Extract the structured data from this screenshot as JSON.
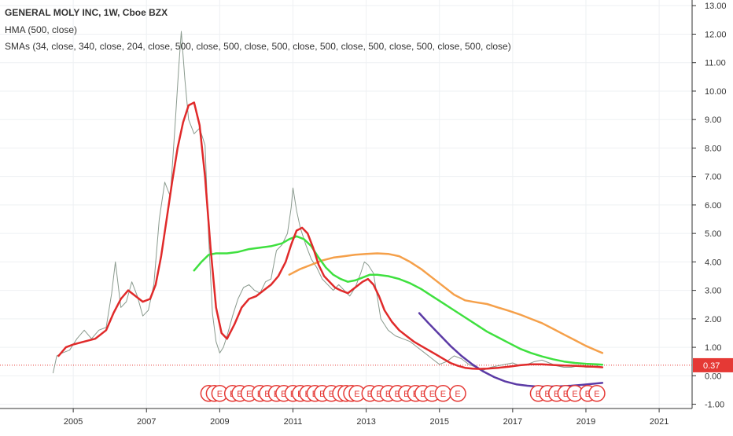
{
  "header": {
    "title": "GENERAL MOLY INC, 1W, Cboe BZX",
    "hma_label": "HMA (500, close)",
    "sma_label": "SMAs (34, close, 340, close, 204, close, 500, close, 500, close, 500, close, 500, close, 500, close, 500, close, 500, close)"
  },
  "chart_data": {
    "type": "line",
    "xlim": [
      2003.0,
      2021.9
    ],
    "ylim": [
      -1.15,
      13.2
    ],
    "y_ticks": [
      "13.00",
      "12.00",
      "11.00",
      "10.00",
      "9.00",
      "8.00",
      "7.00",
      "6.00",
      "5.00",
      "4.00",
      "3.00",
      "2.00",
      "1.00",
      "0.00",
      "-1.00"
    ],
    "x_ticks": [
      "2005",
      "2007",
      "2009",
      "2011",
      "2013",
      "2015",
      "2017",
      "2019",
      "2021"
    ],
    "grid": true,
    "last_price": 0.37,
    "last_price_label": "0.37",
    "colors": {
      "price": "#8a9a8e",
      "hma": "#e02a2a",
      "sma_green": "#3fe03f",
      "sma_orange": "#f5a04a",
      "sma_purple": "#5b3aa5",
      "last_price": "#e53935",
      "earnings_marker": "#e53935"
    },
    "series": [
      {
        "kind": "price",
        "x": [
          2004.45,
          2004.55,
          2004.7,
          2004.9,
          2005.1,
          2005.3,
          2005.5,
          2005.7,
          2005.9,
          2006.05,
          2006.15,
          2006.3,
          2006.45,
          2006.6,
          2006.75,
          2006.9,
          2007.05,
          2007.2,
          2007.35,
          2007.5,
          2007.65,
          2007.78,
          2007.88,
          2007.95,
          2008.05,
          2008.15,
          2008.3,
          2008.45,
          2008.6,
          2008.7,
          2008.8,
          2008.9,
          2009.0,
          2009.1,
          2009.2,
          2009.35,
          2009.5,
          2009.65,
          2009.8,
          2009.95,
          2010.1,
          2010.25,
          2010.4,
          2010.55,
          2010.7,
          2010.85,
          2010.95,
          2011.0,
          2011.1,
          2011.2,
          2011.35,
          2011.5,
          2011.65,
          2011.8,
          2011.95,
          2012.1,
          2012.25,
          2012.4,
          2012.55,
          2012.7,
          2012.85,
          2012.95,
          2013.05,
          2013.2,
          2013.4,
          2013.6,
          2013.8,
          2014.0,
          2014.2,
          2014.4,
          2014.6,
          2014.8,
          2015.0,
          2015.2,
          2015.4,
          2015.6,
          2015.8,
          2016.0,
          2016.2,
          2016.4,
          2016.6,
          2016.8,
          2017.0,
          2017.2,
          2017.4,
          2017.6,
          2017.8,
          2018.0,
          2018.2,
          2018.4,
          2018.6,
          2018.8,
          2019.0,
          2019.2,
          2019.4,
          2019.45
        ],
        "values": [
          0.1,
          0.7,
          0.8,
          0.9,
          1.3,
          1.6,
          1.3,
          1.6,
          1.7,
          2.9,
          4.0,
          2.4,
          2.6,
          3.3,
          2.8,
          2.1,
          2.3,
          3.2,
          5.5,
          6.8,
          6.3,
          8.8,
          10.8,
          12.1,
          10.4,
          9.0,
          8.5,
          8.7,
          8.1,
          4.8,
          2.2,
          1.2,
          0.8,
          1.0,
          1.4,
          2.1,
          2.7,
          3.1,
          3.2,
          3.0,
          2.9,
          3.3,
          3.4,
          4.4,
          4.6,
          5.0,
          5.9,
          6.6,
          5.8,
          5.2,
          4.6,
          4.1,
          3.8,
          3.4,
          3.2,
          3.0,
          3.2,
          3.0,
          2.8,
          3.1,
          3.6,
          4.0,
          3.9,
          3.6,
          2.0,
          1.6,
          1.4,
          1.3,
          1.2,
          1.0,
          0.8,
          0.6,
          0.4,
          0.5,
          0.7,
          0.6,
          0.4,
          0.3,
          0.2,
          0.3,
          0.35,
          0.4,
          0.45,
          0.35,
          0.4,
          0.5,
          0.55,
          0.45,
          0.35,
          0.3,
          0.3,
          0.35,
          0.3,
          0.3,
          0.4,
          0.37
        ]
      },
      {
        "kind": "hma",
        "x": [
          2004.6,
          2004.8,
          2005.0,
          2005.3,
          2005.6,
          2005.9,
          2006.1,
          2006.3,
          2006.5,
          2006.7,
          2006.9,
          2007.1,
          2007.25,
          2007.4,
          2007.55,
          2007.7,
          2007.85,
          2008.0,
          2008.15,
          2008.3,
          2008.45,
          2008.6,
          2008.75,
          2008.9,
          2009.05,
          2009.2,
          2009.4,
          2009.6,
          2009.8,
          2010.0,
          2010.2,
          2010.4,
          2010.6,
          2010.8,
          2010.95,
          2011.1,
          2011.25,
          2011.4,
          2011.55,
          2011.7,
          2011.85,
          2012.0,
          2012.15,
          2012.3,
          2012.5,
          2012.7,
          2012.9,
          2013.05,
          2013.2,
          2013.35,
          2013.5,
          2013.7,
          2013.9,
          2014.1,
          2014.3,
          2014.5,
          2014.7,
          2014.9,
          2015.1,
          2015.3,
          2015.5,
          2015.7,
          2015.9,
          2016.1,
          2016.3,
          2016.6,
          2016.9,
          2017.2,
          2017.5,
          2017.8,
          2018.1,
          2018.4,
          2018.7,
          2019.0,
          2019.2,
          2019.45
        ],
        "values": [
          0.7,
          1.0,
          1.1,
          1.2,
          1.3,
          1.6,
          2.2,
          2.7,
          3.0,
          2.8,
          2.6,
          2.7,
          3.2,
          4.2,
          5.5,
          6.8,
          8.0,
          8.9,
          9.5,
          9.6,
          8.8,
          7.0,
          4.5,
          2.4,
          1.5,
          1.3,
          1.8,
          2.4,
          2.7,
          2.8,
          3.0,
          3.2,
          3.5,
          4.0,
          4.6,
          5.1,
          5.2,
          5.0,
          4.5,
          3.9,
          3.5,
          3.3,
          3.1,
          3.0,
          2.9,
          3.1,
          3.3,
          3.4,
          3.2,
          2.8,
          2.3,
          1.9,
          1.6,
          1.4,
          1.2,
          1.05,
          0.9,
          0.75,
          0.6,
          0.45,
          0.35,
          0.28,
          0.25,
          0.24,
          0.25,
          0.28,
          0.32,
          0.37,
          0.4,
          0.4,
          0.38,
          0.36,
          0.35,
          0.33,
          0.32,
          0.3
        ]
      },
      {
        "kind": "sma_green",
        "x": [
          2008.3,
          2008.5,
          2008.7,
          2008.9,
          2009.2,
          2009.5,
          2009.8,
          2010.1,
          2010.4,
          2010.7,
          2010.9,
          2011.1,
          2011.3,
          2011.5,
          2011.7,
          2011.9,
          2012.1,
          2012.3,
          2012.5,
          2012.7,
          2012.9,
          2013.1,
          2013.3,
          2013.6,
          2013.9,
          2014.2,
          2014.5,
          2014.8,
          2015.1,
          2015.4,
          2015.7,
          2016.0,
          2016.3,
          2016.6,
          2016.9,
          2017.2,
          2017.5,
          2017.8,
          2018.1,
          2018.4,
          2018.7,
          2019.0,
          2019.3,
          2019.45
        ],
        "values": [
          3.7,
          4.0,
          4.25,
          4.3,
          4.3,
          4.35,
          4.45,
          4.5,
          4.55,
          4.65,
          4.8,
          4.9,
          4.8,
          4.55,
          4.15,
          3.8,
          3.55,
          3.4,
          3.3,
          3.35,
          3.45,
          3.55,
          3.55,
          3.5,
          3.4,
          3.25,
          3.05,
          2.8,
          2.55,
          2.3,
          2.05,
          1.8,
          1.55,
          1.35,
          1.15,
          0.95,
          0.8,
          0.68,
          0.58,
          0.5,
          0.45,
          0.42,
          0.4,
          0.39
        ]
      },
      {
        "kind": "sma_orange",
        "x": [
          2010.9,
          2011.2,
          2011.5,
          2011.8,
          2012.1,
          2012.4,
          2012.7,
          2013.0,
          2013.3,
          2013.6,
          2013.9,
          2014.2,
          2014.5,
          2014.8,
          2015.1,
          2015.4,
          2015.7,
          2016.0,
          2016.3,
          2016.6,
          2016.9,
          2017.2,
          2017.5,
          2017.8,
          2018.1,
          2018.4,
          2018.7,
          2019.0,
          2019.3,
          2019.45
        ],
        "values": [
          3.55,
          3.75,
          3.9,
          4.05,
          4.15,
          4.2,
          4.25,
          4.28,
          4.3,
          4.28,
          4.2,
          4.0,
          3.75,
          3.45,
          3.15,
          2.85,
          2.65,
          2.58,
          2.52,
          2.4,
          2.28,
          2.15,
          2.0,
          1.85,
          1.65,
          1.45,
          1.25,
          1.05,
          0.88,
          0.8
        ]
      },
      {
        "kind": "sma_purple",
        "x": [
          2014.45,
          2014.7,
          2015.0,
          2015.3,
          2015.6,
          2015.9,
          2016.2,
          2016.5,
          2016.8,
          2017.1,
          2017.4,
          2017.7,
          2018.0,
          2018.3,
          2018.6,
          2018.9,
          2019.2,
          2019.45
        ],
        "values": [
          2.2,
          1.85,
          1.45,
          1.05,
          0.7,
          0.4,
          0.15,
          -0.05,
          -0.2,
          -0.3,
          -0.35,
          -0.38,
          -0.38,
          -0.37,
          -0.35,
          -0.32,
          -0.28,
          -0.25
        ]
      }
    ],
    "earnings_markers": {
      "label": "E",
      "y": -0.62,
      "x": [
        2008.7,
        2008.85,
        2009.0,
        2009.35,
        2009.55,
        2009.8,
        2010.1,
        2010.3,
        2010.55,
        2010.75,
        2011.0,
        2011.2,
        2011.4,
        2011.6,
        2011.8,
        2012.05,
        2012.3,
        2012.45,
        2012.6,
        2012.75,
        2013.1,
        2013.35,
        2013.6,
        2013.85,
        2014.1,
        2014.35,
        2014.55,
        2014.8,
        2015.1,
        2015.5,
        2017.7,
        2017.95,
        2018.2,
        2018.45,
        2018.7,
        2019.05,
        2019.3
      ]
    }
  }
}
